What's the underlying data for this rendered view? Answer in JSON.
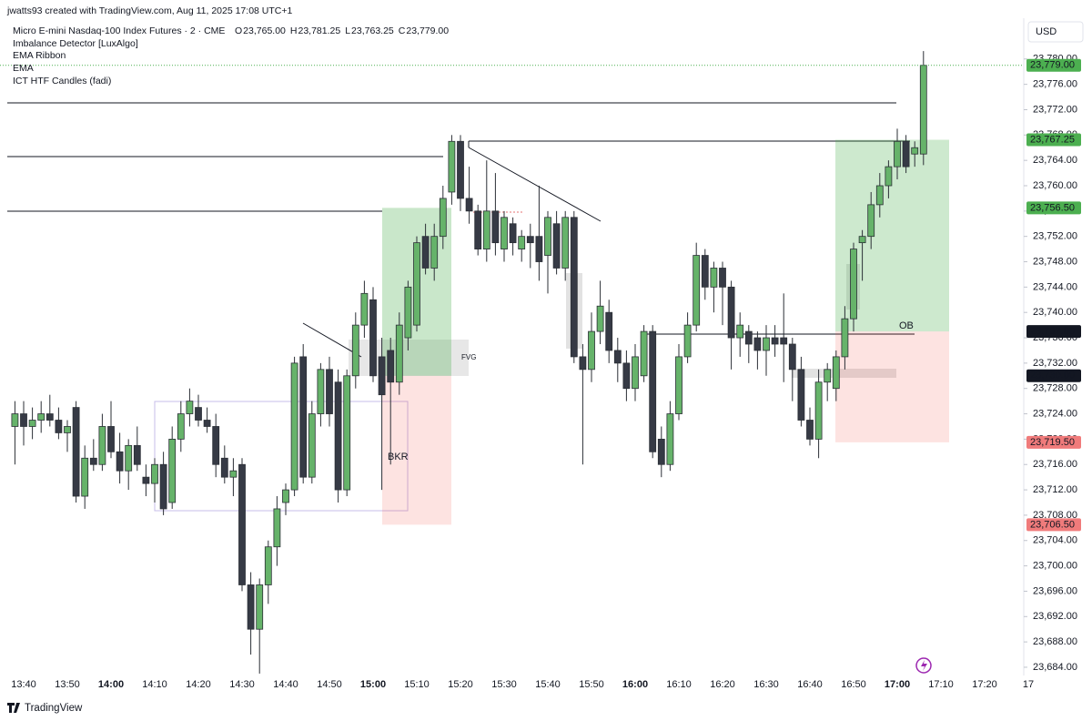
{
  "header": {
    "credit": "jwatts93 created with TradingView.com, Aug 11, 2025 17:08 UTC+1",
    "symbol": "Micro E-mini Nasdaq-100 Index Futures · 2 · CME",
    "ohlc": [
      {
        "key": "O",
        "value": "23,765.00"
      },
      {
        "key": "H",
        "value": "23,781.25"
      },
      {
        "key": "L",
        "value": "23,763.25"
      },
      {
        "key": "C",
        "value": "23,779.00"
      }
    ],
    "indicators": [
      "Imbalance Detector [LuxAlgo]",
      "EMA Ribbon",
      "EMA",
      "ICT HTF Candles (fadi)"
    ],
    "currency": "USD"
  },
  "chart_data": {
    "type": "candlestick",
    "up_color": "#66b36a",
    "down_color": "#363a45",
    "open": [
      23722,
      23724,
      23722,
      23723,
      23724,
      23723,
      23721,
      23725,
      23711,
      23717,
      23716,
      23722,
      23718,
      23715,
      23719,
      23714,
      23713,
      23716,
      23710,
      23720,
      23724,
      23725,
      23723,
      23722,
      23717,
      23714,
      23716,
      23697,
      23690,
      23697,
      23703,
      23710,
      23712,
      23733,
      23714,
      23724,
      23731,
      23729,
      23712,
      23730,
      23738,
      23742,
      23733,
      23734,
      23729,
      23736,
      23738,
      23752,
      23747,
      23752,
      23759,
      23767,
      23758,
      23756,
      23750,
      23756,
      23750,
      23754,
      23750,
      23752,
      23752,
      23749,
      23754,
      23747,
      23755,
      23733,
      23731,
      23737,
      23740,
      23734,
      23732,
      23728,
      23730,
      23737,
      23720,
      23716,
      23724,
      23733,
      23738,
      23749,
      23744,
      23747,
      23744,
      23736,
      23737,
      23736,
      23734,
      23736,
      23736,
      23735,
      23731,
      23723,
      23720,
      23729,
      23728,
      23733,
      23739,
      23751,
      23752,
      23757,
      23760,
      23763,
      23767,
      23765,
      23765
    ],
    "high": [
      23726,
      23726,
      23725,
      23726,
      23727,
      23725,
      23723,
      23726,
      23719,
      23720,
      23724,
      23726,
      23721,
      23720,
      23722,
      23716,
      23717,
      23718,
      23722,
      23726,
      23728,
      23727,
      23725,
      23724,
      23719,
      23717,
      23717,
      23699,
      23698,
      23704,
      23711,
      23713,
      23733,
      23735,
      23726,
      23732,
      23733,
      23731,
      23731,
      23740,
      23745,
      23744,
      23736,
      23736,
      23740,
      23745,
      23752,
      23754,
      23754,
      23760,
      23768,
      23768,
      23763,
      23757,
      23764,
      23762,
      23756,
      23755,
      23753,
      23754,
      23760,
      23756,
      23756,
      23756,
      23756,
      23735,
      23740,
      23745,
      23742,
      23736,
      23734,
      23735,
      23738,
      23738,
      23722,
      23726,
      23735,
      23740,
      23751,
      23750,
      23748,
      23748,
      23745,
      23740,
      23738,
      23737,
      23738,
      23738,
      23743,
      23736,
      23733,
      23725,
      23731,
      23732,
      23734,
      23741,
      23751,
      23753,
      23759,
      23762,
      23764,
      23769,
      23768,
      23767,
      23781.25
    ],
    "low": [
      23716,
      23719,
      23720,
      23721,
      23722,
      23720,
      23718,
      23710,
      23709,
      23715,
      23715,
      23717,
      23713,
      23712,
      23715,
      23711,
      23710,
      23708,
      23709,
      23718,
      23722,
      23722,
      23721,
      23714,
      23713,
      23711,
      23696,
      23686,
      23683,
      23694,
      23700,
      23708,
      23711,
      23713,
      23713,
      23722,
      23722,
      23710,
      23711,
      23728,
      23736,
      23729,
      23712,
      23716,
      23727,
      23734,
      23737,
      23746,
      23745,
      23750,
      23757,
      23756,
      23754,
      23749,
      23748,
      23749,
      23748,
      23749,
      23748,
      23747,
      23745,
      23743,
      23746,
      23745,
      23732,
      23716,
      23729,
      23735,
      23732,
      23729,
      23726,
      23726,
      23729,
      23717,
      23714,
      23715,
      23723,
      23732,
      23737,
      23742,
      23740,
      23738,
      23731,
      23733,
      23732,
      23731,
      23730,
      23733,
      23729,
      23726,
      23722,
      23719,
      23717,
      23726,
      23726,
      23731,
      23737,
      23745,
      23750,
      23755,
      23758,
      23761,
      23762,
      23763,
      23763.25
    ],
    "close": [
      23724,
      23722,
      23723,
      23724,
      23723,
      23721,
      23722,
      23711,
      23717,
      23716,
      23722,
      23718,
      23715,
      23719,
      23716,
      23713,
      23716,
      23709,
      23720,
      23724,
      23726,
      23723,
      23722,
      23716,
      23714,
      23715,
      23697,
      23690,
      23697,
      23703,
      23709,
      23712,
      23732,
      23714,
      23724,
      23731,
      23724,
      23712,
      23730,
      23738,
      23743,
      23730,
      23727,
      23729,
      23738,
      23744,
      23751,
      23747,
      23752,
      23758,
      23767,
      23758,
      23756,
      23750,
      23756,
      23751,
      23755,
      23751,
      23752,
      23751,
      23748,
      23755,
      23747,
      23755,
      23733,
      23731,
      23737,
      23741,
      23734,
      23732,
      23728,
      23733,
      23737,
      23718,
      23716,
      23724,
      23733,
      23738,
      23749,
      23744,
      23747,
      23744,
      23736,
      23738,
      23735,
      23734,
      23736,
      23735,
      23735,
      23731,
      23723,
      23720,
      23729,
      23731,
      23733,
      23739,
      23750,
      23752,
      23757,
      23760,
      23763,
      23767,
      23763,
      23766,
      23779
    ],
    "xticks": [
      "13:40",
      "13:50",
      "14:00",
      "14:10",
      "14:20",
      "14:30",
      "14:40",
      "14:50",
      "15:00",
      "15:10",
      "15:20",
      "15:30",
      "15:40",
      "15:50",
      "16:00",
      "16:10",
      "16:20",
      "16:30",
      "16:40",
      "16:50",
      "17:00",
      "17:10",
      "17:20",
      "17"
    ],
    "ylim": [
      23682.7,
      23785
    ],
    "yticks": [
      {
        "value": 23684,
        "label": "23,684.00"
      },
      {
        "value": 23688,
        "label": "23,688.00"
      },
      {
        "value": 23692,
        "label": "23,692.00"
      },
      {
        "value": 23696,
        "label": "23,696.00"
      },
      {
        "value": 23700,
        "label": "23,700.00"
      },
      {
        "value": 23704,
        "label": "23,704.00"
      },
      {
        "value": 23708,
        "label": "23,708.00"
      },
      {
        "value": 23712,
        "label": "23,712.00"
      },
      {
        "value": 23716,
        "label": "23,716.00"
      },
      {
        "value": 23720,
        "label": "23,720.00"
      },
      {
        "value": 23724,
        "label": "23,724.00"
      },
      {
        "value": 23728,
        "label": "23,728.00"
      },
      {
        "value": 23732,
        "label": "23,732.00"
      },
      {
        "value": 23736,
        "label": "23,736.00"
      },
      {
        "value": 23740,
        "label": "23,740.00"
      },
      {
        "value": 23744,
        "label": "23,744.00"
      },
      {
        "value": 23748,
        "label": "23,748.00"
      },
      {
        "value": 23752,
        "label": "23,752.00"
      },
      {
        "value": 23756,
        "label": "23,756.00"
      },
      {
        "value": 23760,
        "label": "23,760.00"
      },
      {
        "value": 23764,
        "label": "23,764.00"
      },
      {
        "value": 23768,
        "label": "23,768.00"
      },
      {
        "value": 23772,
        "label": "23,772.00"
      },
      {
        "value": 23776,
        "label": "23,776.00"
      },
      {
        "value": 23780,
        "label": "23,780.00"
      }
    ],
    "price_tags": [
      {
        "value": 23779,
        "label": "23,779.00",
        "color": "#4caf50"
      },
      {
        "value": 23767.25,
        "label": "23,767.25",
        "color": "#4caf50"
      },
      {
        "value": 23756.5,
        "label": "23,756.50",
        "color": "#4caf50"
      },
      {
        "value": 23737,
        "label": "23,737.00",
        "color": "#131722"
      },
      {
        "value": 23730,
        "label": "23,730.00",
        "color": "#131722"
      },
      {
        "value": 23719.5,
        "label": "23,719.50",
        "color": "#f07b7b"
      },
      {
        "value": 23706.5,
        "label": "23,706.50",
        "color": "#f07b7b"
      }
    ],
    "annotations": [
      "FVG",
      "BKR",
      "OB"
    ]
  },
  "footer": "TradingView"
}
